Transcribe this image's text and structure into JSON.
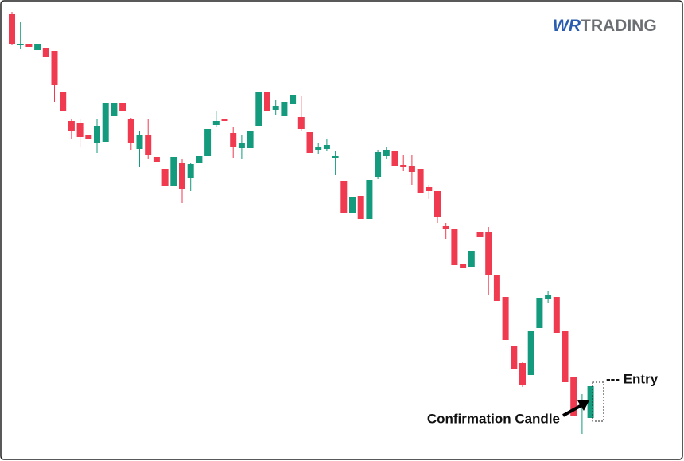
{
  "chart_data": {
    "type": "candlestick",
    "logo": {
      "mark": "WR",
      "text": "TRADING"
    },
    "annotations": [
      "--- Entry",
      "Confirmation Candle"
    ],
    "up_color": "#149a7c",
    "down_color": "#ef3a50",
    "ylim": [
      0,
      580
    ],
    "open": [
      562,
      523,
      525,
      517,
      520,
      516,
      464,
      428,
      426,
      410,
      400,
      402,
      434,
      451,
      430,
      393,
      410,
      383,
      368,
      347,
      375,
      357,
      375,
      384,
      423,
      430,
      413,
      394,
      394,
      422,
      464,
      442,
      434,
      450,
      433,
      414,
      391,
      393,
      382,
      353,
      313,
      334,
      305,
      358,
      384,
      390,
      373,
      371,
      368,
      345,
      340,
      296,
      293,
      248,
      245,
      288,
      288,
      235,
      207,
      146,
      124,
      109,
      168,
      205,
      207,
      164,
      107,
      75,
      55
    ],
    "high": [
      565,
      552,
      525,
      525,
      520,
      516,
      464,
      430,
      430,
      410,
      430,
      451,
      451,
      451,
      432,
      415,
      430,
      383,
      368,
      383,
      380,
      375,
      384,
      418,
      440,
      430,
      420,
      410,
      415,
      464,
      464,
      455,
      452,
      461,
      460,
      414,
      400,
      405,
      390,
      353,
      333,
      334,
      354,
      392,
      395,
      390,
      385,
      385,
      368,
      348,
      340,
      300,
      293,
      248,
      265,
      295,
      295,
      235,
      207,
      146,
      125,
      164,
      206,
      215,
      207,
      164,
      107,
      85,
      95
    ],
    "low": [
      523,
      518,
      521,
      517,
      508,
      452,
      440,
      405,
      395,
      405,
      388,
      402,
      434,
      440,
      392,
      370,
      380,
      376,
      347,
      347,
      325,
      340,
      375,
      384,
      420,
      428,
      382,
      380,
      394,
      422,
      440,
      435,
      434,
      450,
      415,
      388,
      387,
      390,
      360,
      313,
      313,
      305,
      305,
      355,
      380,
      372,
      365,
      348,
      338,
      330,
      300,
      280,
      247,
      243,
      245,
      280,
      210,
      202,
      153,
      117,
      94,
      109,
      168,
      200,
      162,
      100,
      57,
      35,
      55
    ],
    "close": [
      525,
      525,
      521,
      525,
      508,
      473,
      440,
      415,
      408,
      405,
      422,
      451,
      451,
      440,
      400,
      410,
      385,
      376,
      347,
      383,
      342,
      374,
      384,
      418,
      428,
      428,
      396,
      400,
      415,
      464,
      440,
      447,
      452,
      461,
      418,
      388,
      395,
      398,
      384,
      313,
      333,
      305,
      354,
      389,
      391,
      372,
      370,
      364,
      338,
      340,
      307,
      292,
      247,
      243,
      265,
      282,
      235,
      202,
      153,
      117,
      97,
      164,
      206,
      209,
      162,
      100,
      57,
      77,
      95
    ]
  }
}
